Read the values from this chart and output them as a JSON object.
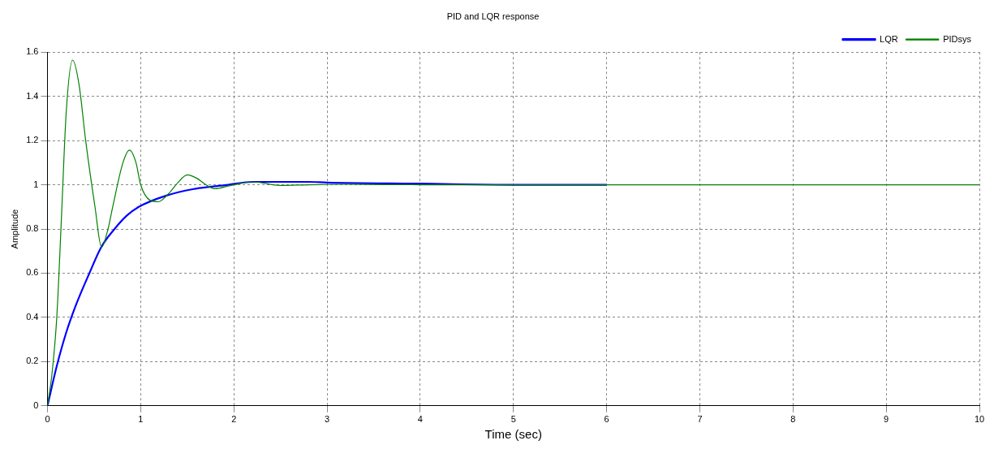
{
  "chart_data": {
    "type": "line",
    "title": "PID and LQR response",
    "xlabel": "Time (sec)",
    "ylabel": "Amplitude",
    "xlim": [
      0,
      10
    ],
    "xticks": [
      0,
      1,
      2,
      3,
      4,
      5,
      6,
      7,
      8,
      9,
      10
    ],
    "ylim": [
      0,
      1.6
    ],
    "yticks": [
      0,
      0.2,
      0.4,
      0.6,
      0.8,
      1,
      1.2,
      1.4,
      1.6
    ],
    "grid": true,
    "legend": "top right",
    "marker": "none",
    "line_style": "solid",
    "series": [
      {
        "name": "LQR",
        "color": "#0000ff",
        "x": [
          0,
          0.1,
          0.2,
          0.3,
          0.45,
          0.58,
          0.72,
          0.85,
          0.98,
          1.27,
          1.56,
          1.94,
          2.2,
          2.8,
          3,
          4,
          5,
          6
        ],
        "values": [
          0,
          0.18,
          0.33,
          0.45,
          0.6,
          0.72,
          0.8,
          0.86,
          0.9,
          0.95,
          0.98,
          1.0,
          1.013,
          1.013,
          1.01,
          1.005,
          1.0,
          1.0
        ]
      },
      {
        "name": "PIDsys",
        "color": "#008000",
        "x": [
          0,
          0.05,
          0.1,
          0.15,
          0.2,
          0.27,
          0.34,
          0.41,
          0.51,
          0.58,
          0.65,
          0.7,
          0.81,
          0.88,
          0.95,
          1.0,
          1.1,
          1.19,
          1.3,
          1.4,
          1.5,
          1.6,
          1.7,
          1.8,
          1.95,
          2.2,
          2.5,
          2.8,
          3.2,
          4,
          5,
          6,
          8,
          10
        ],
        "values": [
          0,
          0.15,
          0.4,
          0.85,
          1.32,
          1.564,
          1.45,
          1.2,
          0.9,
          0.717,
          0.8,
          0.9,
          1.1,
          1.157,
          1.1,
          1.0,
          0.93,
          0.923,
          0.96,
          1.01,
          1.045,
          1.03,
          1.0,
          0.982,
          0.995,
          1.013,
          0.997,
          1.0,
          1.002,
          1.0,
          1.0,
          1.0,
          1.0,
          1.0
        ]
      }
    ]
  }
}
